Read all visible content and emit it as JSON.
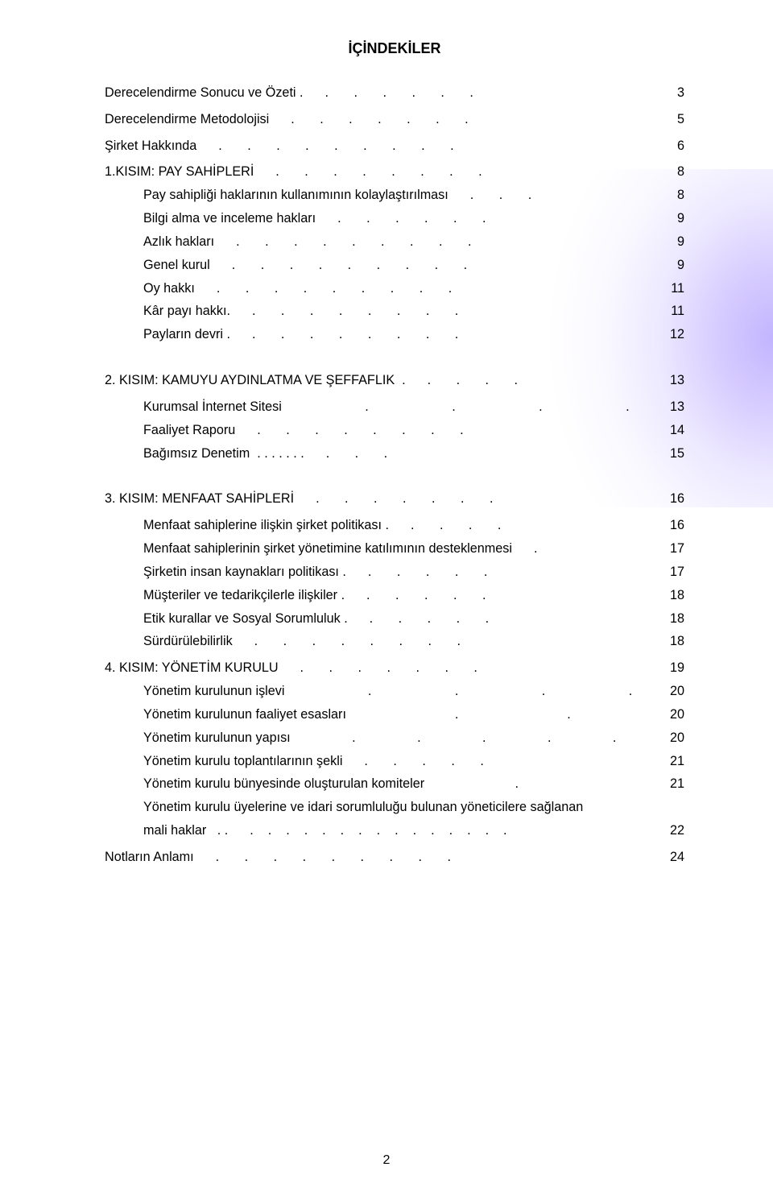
{
  "title": "İÇİNDEKİLER",
  "pageNumber": "2",
  "entries": [
    {
      "label": "Derecelendirme Sonucu ve Özeti .",
      "dots": 6,
      "page": "3",
      "indent": false,
      "gapAfter": "small"
    },
    {
      "label": "Derecelendirme Metodolojisi",
      "dots": 7,
      "page": "5",
      "indent": false,
      "gapAfter": "small"
    },
    {
      "label": "Şirket Hakkında",
      "dots": 9,
      "page": "6",
      "indent": false,
      "gapAfter": "small"
    },
    {
      "label": "1.KISIM: PAY SAHİPLERİ",
      "dots": 8,
      "page": "8",
      "indent": false
    },
    {
      "label": "Pay sahipliği haklarının kullanımının kolaylaştırılması",
      "dots": 3,
      "page": "8",
      "indent": true
    },
    {
      "label": "Bilgi alma ve inceleme hakları",
      "dots": 6,
      "page": "9",
      "indent": true
    },
    {
      "label": "Azlık hakları",
      "dots": 9,
      "page": "9",
      "indent": true
    },
    {
      "label": "Genel kurul",
      "dots": 9,
      "page": "9",
      "indent": true
    },
    {
      "label": "Oy hakkı",
      "dots": 9,
      "page": "11",
      "indent": true
    },
    {
      "label": "Kâr payı hakkı.",
      "dots": 8,
      "page": "11",
      "indent": true
    },
    {
      "label": "Payların devri .",
      "dots": 8,
      "page": "12",
      "indent": true,
      "gapAfter": "section"
    },
    {
      "label": "2. KISIM: KAMUYU AYDINLATMA VE ŞEFFAFLIK  .",
      "dots": 4,
      "page": "13",
      "indent": false,
      "gapAfter": "small"
    },
    {
      "label": "Kurumsal İnternet Sitesi",
      "dots": 4,
      "page": "13",
      "indent": true,
      "wide": true
    },
    {
      "label": "Faaliyet Raporu",
      "dots": 8,
      "page": "14",
      "indent": true
    },
    {
      "label": "Bağımsız Denetim  . . . . . . .",
      "dots": 3,
      "page": "15",
      "indent": true,
      "gapAfter": "section"
    },
    {
      "label": "3. KISIM: MENFAAT SAHİPLERİ",
      "dots": 7,
      "page": "16",
      "indent": false,
      "gapAfter": "small"
    },
    {
      "label": "Menfaat sahiplerine ilişkin şirket politikası .",
      "dots": 4,
      "page": "16",
      "indent": true
    },
    {
      "label": "Menfaat sahiplerinin şirket yönetimine katılımının desteklenmesi",
      "dots": 1,
      "page": "17",
      "indent": true
    },
    {
      "label": "Şirketin insan kaynakları politikası .",
      "dots": 5,
      "page": "17",
      "indent": true
    },
    {
      "label": "Müşteriler ve tedarikçilerle ilişkiler .",
      "dots": 5,
      "page": "18",
      "indent": true
    },
    {
      "label": "Etik kurallar ve Sosyal Sorumluluk .",
      "dots": 5,
      "page": "18",
      "indent": true
    },
    {
      "label": "Sürdürülebilirlik",
      "dots": 8,
      "page": "18",
      "indent": true,
      "gapAfter": "small"
    },
    {
      "label": "4. KISIM: YÖNETİM KURULU",
      "dots": 7,
      "page": "19",
      "indent": false
    },
    {
      "label": "Yönetim kurulunun işlevi",
      "dots": 4,
      "page": "20",
      "indent": true,
      "wide": true
    },
    {
      "label": "Yönetim kurulunun faaliyet esasları",
      "dots": 2,
      "page": "20",
      "indent": true,
      "wide2": true
    },
    {
      "label": "Yönetim kurulunun yapısı",
      "dots": 5,
      "page": "20",
      "indent": true,
      "wide3": true
    },
    {
      "label": "Yönetim kurulu toplantılarının şekli",
      "dots": 5,
      "page": "21",
      "indent": true
    },
    {
      "label": "Yönetim kurulu bünyesinde oluşturulan komiteler",
      "dots": 1,
      "page": "21",
      "indent": true,
      "wide4": true
    },
    {
      "label": "Yönetim kurulu üyelerine ve idari sorumluluğu bulunan yöneticilere sağlanan",
      "dots": 0,
      "page": "",
      "indent": true,
      "nopage": true
    },
    {
      "label": "mali haklar   . .",
      "dots": 8,
      "page": "22",
      "indent": true,
      "gapAfter": "small",
      "split": true
    },
    {
      "label": "Notların Anlamı",
      "dots": 9,
      "page": "24",
      "indent": false
    }
  ]
}
